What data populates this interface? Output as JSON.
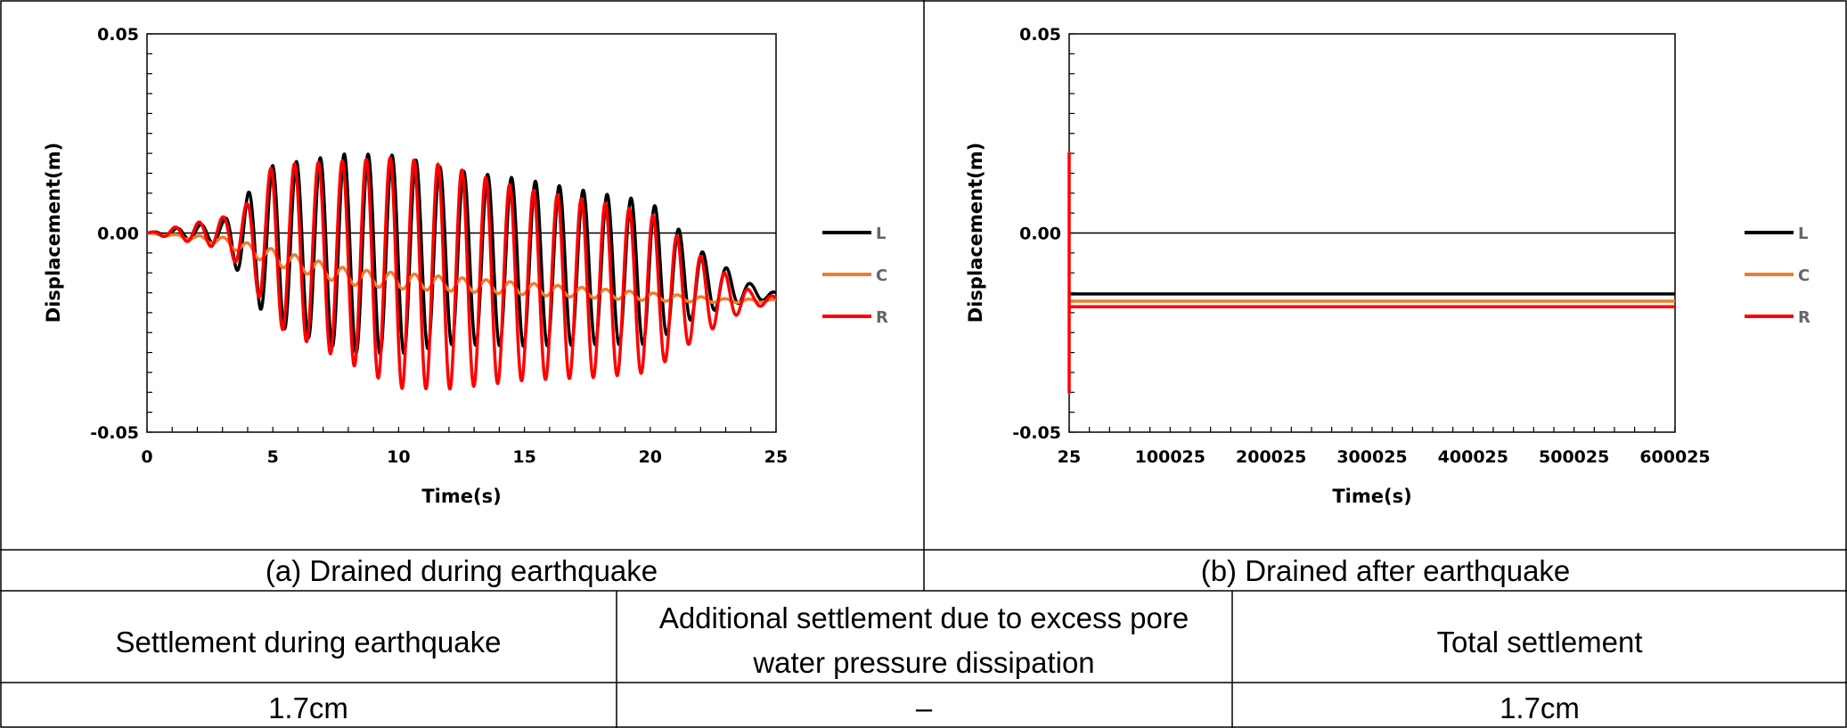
{
  "chart_data": [
    {
      "type": "line",
      "caption": "(a) Drained during earthquake",
      "xlabel": "Time(s)",
      "ylabel": "Displacement(m)",
      "xlim": [
        0,
        25
      ],
      "ylim": [
        -0.05,
        0.05
      ],
      "x_ticks": [
        "0",
        "5",
        "10",
        "15",
        "20",
        "25"
      ],
      "y_ticks": [
        "0.05",
        "0.00",
        "-0.05"
      ],
      "legend": [
        "L",
        "C",
        "R"
      ],
      "series": [
        {
          "name": "L",
          "color": "#000000",
          "model": "oscillation",
          "period": 0.95,
          "phase": 0.0,
          "envelope_t": [
            0,
            3,
            4,
            5,
            8,
            10,
            12,
            15,
            18,
            20,
            22,
            24,
            25
          ],
          "envelope_a": [
            0.0,
            0.003,
            0.012,
            0.02,
            0.025,
            0.025,
            0.022,
            0.021,
            0.019,
            0.018,
            0.008,
            0.002,
            0.001
          ],
          "offset_t": [
            0,
            3,
            4.5,
            5,
            8,
            12,
            20,
            25
          ],
          "offset_v": [
            0.0,
            0.0,
            -0.003,
            -0.003,
            -0.005,
            -0.006,
            -0.01,
            -0.016
          ]
        },
        {
          "name": "C",
          "color": "#ED7D31",
          "model": "oscillation",
          "period": 0.95,
          "phase": 0.35,
          "envelope_t": [
            0,
            3,
            5,
            10,
            15,
            20,
            23,
            25
          ],
          "envelope_a": [
            0.0,
            0.001,
            0.002,
            0.002,
            0.0015,
            0.001,
            0.0005,
            0.0003
          ],
          "offset_t": [
            0,
            3,
            5,
            8,
            10,
            15,
            20,
            23,
            25
          ],
          "offset_v": [
            0.0,
            -0.002,
            -0.006,
            -0.011,
            -0.012,
            -0.014,
            -0.016,
            -0.017,
            -0.017
          ]
        },
        {
          "name": "R",
          "color": "#FF0000",
          "model": "oscillation",
          "period": 0.95,
          "phase": 0.5,
          "envelope_t": [
            0,
            3,
            4,
            5,
            10,
            12,
            15,
            18,
            20,
            22,
            24,
            25
          ],
          "envelope_a": [
            0.0,
            0.004,
            0.009,
            0.02,
            0.029,
            0.028,
            0.024,
            0.022,
            0.02,
            0.01,
            0.002,
            0.001
          ],
          "offset_t": [
            0,
            3,
            5,
            10,
            15,
            20,
            25
          ],
          "offset_v": [
            0.0,
            0.0,
            -0.003,
            -0.01,
            -0.013,
            -0.015,
            -0.017
          ]
        }
      ]
    },
    {
      "type": "line",
      "caption": "(b) Drained after earthquake",
      "xlabel": "Time(s)",
      "ylabel": "Displacement(m)",
      "xlim": [
        25,
        600025
      ],
      "ylim": [
        -0.05,
        0.05
      ],
      "x_ticks": [
        "25",
        "100025",
        "200025",
        "300025",
        "400025",
        "500025",
        "600025"
      ],
      "y_ticks": [
        "0.05",
        "0.00",
        "-0.05"
      ],
      "legend": [
        "L",
        "C",
        "R"
      ],
      "series": [
        {
          "name": "L",
          "color": "#000000",
          "x": [
            25,
            600025
          ],
          "y": [
            -0.0153,
            -0.0153
          ]
        },
        {
          "name": "C",
          "color": "#ED7D31",
          "x": [
            25,
            600025
          ],
          "y": [
            -0.0171,
            -0.0171
          ]
        },
        {
          "name": "R",
          "color": "#FF0000",
          "x": [
            25,
            25,
            25,
            25,
            25,
            600025
          ],
          "y": [
            -0.018,
            0.02,
            -0.04,
            -0.018,
            -0.0185,
            -0.0185
          ]
        }
      ]
    }
  ],
  "table": {
    "headers": [
      "Settlement during earthquake",
      [
        "Additional settlement due to excess pore",
        "water pressure dissipation"
      ],
      "Total settlement"
    ],
    "values": [
      "1.7cm",
      "–",
      "1.7cm"
    ]
  }
}
